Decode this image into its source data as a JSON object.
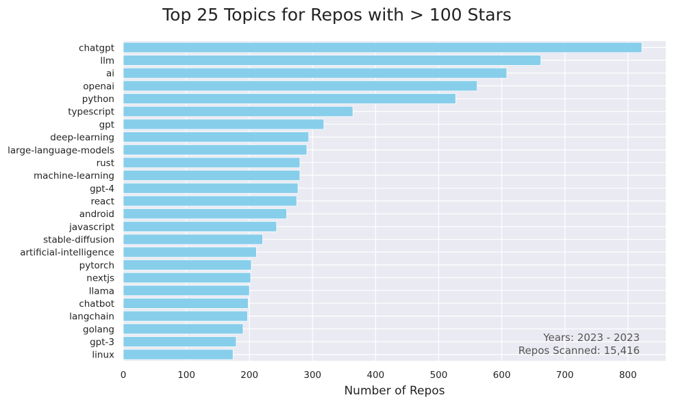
{
  "chart_data": {
    "type": "bar",
    "orientation": "horizontal",
    "title": "Top 25 Topics for Repos with > 100 Stars",
    "xlabel": "Number of Repos",
    "ylabel": "",
    "xlim": [
      0,
      860
    ],
    "xticks": [
      0,
      100,
      200,
      300,
      400,
      500,
      600,
      700,
      800
    ],
    "grid": true,
    "bar_color": "#87CEEB",
    "background_color": "#EAEAF2",
    "categories": [
      "chatgpt",
      "llm",
      "ai",
      "openai",
      "python",
      "typescript",
      "gpt",
      "deep-learning",
      "large-language-models",
      "rust",
      "machine-learning",
      "gpt-4",
      "react",
      "android",
      "javascript",
      "stable-diffusion",
      "artificial-intelligence",
      "pytorch",
      "nextjs",
      "llama",
      "chatbot",
      "langchain",
      "golang",
      "gpt-3",
      "linux"
    ],
    "values": [
      822,
      662,
      608,
      561,
      527,
      364,
      318,
      294,
      291,
      280,
      280,
      277,
      275,
      259,
      243,
      221,
      211,
      203,
      202,
      200,
      198,
      197,
      190,
      179,
      174
    ],
    "annotations": [
      "Years: 2023 - 2023",
      "Repos Scanned: 15,416"
    ]
  }
}
